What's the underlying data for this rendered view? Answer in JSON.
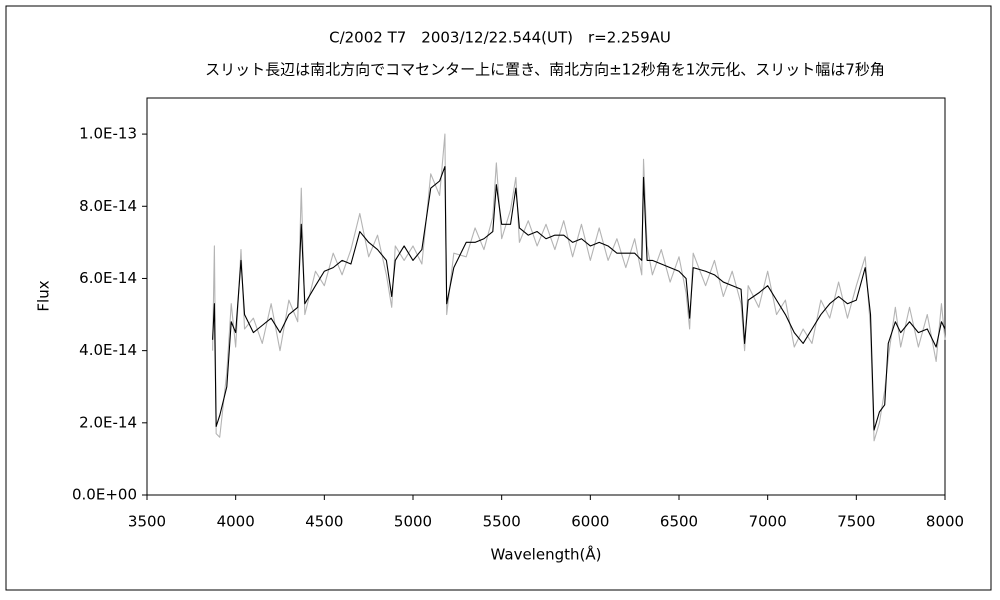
{
  "chart_data": {
    "type": "line",
    "title": "C/2002 T7　2003/12/22.544(UT)　r=2.259AU",
    "subtitle": "スリット長辺は南北方向でコマセンター上に置き、南北方向±12秒角を1次元化、スリット幅は7秒角",
    "x_label": "Wavelength(Å)",
    "y_label": "Flux",
    "xlim": [
      3500,
      8000
    ],
    "xticks": [
      3500,
      4000,
      4500,
      5000,
      5500,
      6000,
      6500,
      7000,
      7500,
      8000
    ],
    "ylim": [
      0,
      1.1e-13
    ],
    "yticks": [
      {
        "value": 0,
        "label": "0.0E+00"
      },
      {
        "value": 2e-14,
        "label": "2.0E-14"
      },
      {
        "value": 4e-14,
        "label": "4.0E-14"
      },
      {
        "value": 6e-14,
        "label": "6.0E-14"
      },
      {
        "value": 8e-14,
        "label": "8.0E-14"
      },
      {
        "value": 1e-13,
        "label": "1.0E-13"
      }
    ],
    "grid": false,
    "x": [
      3870,
      3880,
      3890,
      3910,
      3950,
      3975,
      4000,
      4030,
      4050,
      4100,
      4150,
      4200,
      4250,
      4300,
      4350,
      4370,
      4390,
      4450,
      4500,
      4550,
      4600,
      4650,
      4700,
      4750,
      4800,
      4850,
      4880,
      4900,
      4950,
      5000,
      5050,
      5100,
      5150,
      5180,
      5190,
      5230,
      5300,
      5350,
      5400,
      5450,
      5470,
      5500,
      5550,
      5580,
      5600,
      5650,
      5700,
      5750,
      5800,
      5850,
      5900,
      5950,
      6000,
      6050,
      6100,
      6150,
      6200,
      6250,
      6290,
      6300,
      6320,
      6350,
      6400,
      6450,
      6500,
      6540,
      6560,
      6580,
      6650,
      6700,
      6750,
      6800,
      6850,
      6870,
      6890,
      6950,
      7000,
      7050,
      7100,
      7150,
      7200,
      7250,
      7300,
      7350,
      7400,
      7450,
      7500,
      7550,
      7580,
      7600,
      7630,
      7660,
      7680,
      7720,
      7750,
      7800,
      7850,
      7900,
      7950,
      7980,
      8000
    ],
    "series": [
      {
        "color": "#b4b4b4",
        "values": [
          4e-14,
          6.9e-14,
          1.7e-14,
          1.6e-14,
          3.4e-14,
          5.3e-14,
          4.1e-14,
          6.8e-14,
          4.6e-14,
          4.9e-14,
          4.2e-14,
          5.3e-14,
          4e-14,
          5.4e-14,
          4.8e-14,
          8.5e-14,
          5e-14,
          6.2e-14,
          5.8e-14,
          6.7e-14,
          6.1e-14,
          6.8e-14,
          7.8e-14,
          6.6e-14,
          7.2e-14,
          6.1e-14,
          5.2e-14,
          6.9e-14,
          6.5e-14,
          6.9e-14,
          6.4e-14,
          8.9e-14,
          8.3e-14,
          1e-13,
          5e-14,
          6.7e-14,
          6.6e-14,
          7.4e-14,
          6.8e-14,
          7.7e-14,
          9.2e-14,
          7.1e-14,
          7.9e-14,
          8.8e-14,
          7e-14,
          7.6e-14,
          6.9e-14,
          7.5e-14,
          6.8e-14,
          7.6e-14,
          6.6e-14,
          7.5e-14,
          6.5e-14,
          7.4e-14,
          6.5e-14,
          7.1e-14,
          6.3e-14,
          7.1e-14,
          6.1e-14,
          9.3e-14,
          6.9e-14,
          6.1e-14,
          6.8e-14,
          5.9e-14,
          6.6e-14,
          5.6e-14,
          4.6e-14,
          6.7e-14,
          5.8e-14,
          6.5e-14,
          5.5e-14,
          6.2e-14,
          5.3e-14,
          4e-14,
          5.8e-14,
          5.2e-14,
          6.2e-14,
          5e-14,
          5.4e-14,
          4.1e-14,
          4.6e-14,
          4.2e-14,
          5.4e-14,
          4.9e-14,
          5.9e-14,
          4.9e-14,
          5.8e-14,
          6.6e-14,
          4.6e-14,
          1.5e-14,
          2e-14,
          2.9e-14,
          3.8e-14,
          5.2e-14,
          4.1e-14,
          5.2e-14,
          4.1e-14,
          5e-14,
          3.7e-14,
          5.3e-14,
          4.3e-14
        ]
      },
      {
        "color": "#000000",
        "values": [
          4.3e-14,
          5.3e-14,
          1.9e-14,
          2.2e-14,
          3e-14,
          4.8e-14,
          4.5e-14,
          6.5e-14,
          5e-14,
          4.5e-14,
          4.7e-14,
          4.9e-14,
          4.5e-14,
          5e-14,
          5.2e-14,
          7.5e-14,
          5.3e-14,
          5.8e-14,
          6.2e-14,
          6.3e-14,
          6.5e-14,
          6.4e-14,
          7.3e-14,
          7e-14,
          6.8e-14,
          6.5e-14,
          5.5e-14,
          6.5e-14,
          6.9e-14,
          6.5e-14,
          6.8e-14,
          8.5e-14,
          8.7e-14,
          9.1e-14,
          5.3e-14,
          6.3e-14,
          7e-14,
          7e-14,
          7.1e-14,
          7.3e-14,
          8.6e-14,
          7.5e-14,
          7.5e-14,
          8.5e-14,
          7.4e-14,
          7.2e-14,
          7.3e-14,
          7.1e-14,
          7.2e-14,
          7.2e-14,
          7e-14,
          7.1e-14,
          6.9e-14,
          7e-14,
          6.9e-14,
          6.7e-14,
          6.7e-14,
          6.7e-14,
          6.5e-14,
          8.8e-14,
          6.5e-14,
          6.5e-14,
          6.4e-14,
          6.3e-14,
          6.2e-14,
          6e-14,
          4.9e-14,
          6.3e-14,
          6.2e-14,
          6.1e-14,
          5.9e-14,
          5.8e-14,
          5.7e-14,
          4.2e-14,
          5.4e-14,
          5.6e-14,
          5.8e-14,
          5.4e-14,
          5e-14,
          4.5e-14,
          4.2e-14,
          4.6e-14,
          5e-14,
          5.3e-14,
          5.5e-14,
          5.3e-14,
          5.4e-14,
          6.3e-14,
          5e-14,
          1.8e-14,
          2.3e-14,
          2.5e-14,
          4.2e-14,
          4.8e-14,
          4.5e-14,
          4.8e-14,
          4.5e-14,
          4.6e-14,
          4.1e-14,
          4.8e-14,
          4.6e-14
        ]
      }
    ]
  }
}
